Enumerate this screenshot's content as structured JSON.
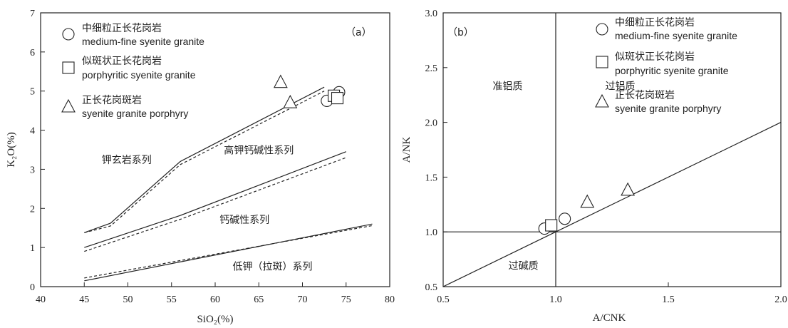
{
  "chart_data": [
    {
      "type": "scatter",
      "panel_label": "（a）",
      "xlabel": "SiO₂(%)",
      "ylabel": "K₂O(%)",
      "xlim": [
        40,
        80
      ],
      "ylim": [
        0,
        7
      ],
      "xticks": [
        40,
        45,
        50,
        55,
        60,
        65,
        70,
        75,
        80
      ],
      "yticks": [
        0,
        1,
        2,
        3,
        4,
        5,
        6,
        7
      ],
      "legend": [
        {
          "marker": "circle",
          "cn": "中细粒正长花岗岩",
          "en": "medium-fine syenite granite"
        },
        {
          "marker": "square",
          "cn": "似斑状正长花岗岩",
          "en": "porphyritic  syenite granite"
        },
        {
          "marker": "triangle",
          "cn": "正长花岗斑岩",
          "en": "syenite granite porphyry"
        }
      ],
      "series": [
        {
          "marker": "circle",
          "points": [
            [
              72.8,
              4.75
            ],
            [
              74.2,
              4.97
            ]
          ]
        },
        {
          "marker": "square",
          "points": [
            [
              73.6,
              4.88
            ],
            [
              74.0,
              4.82
            ]
          ]
        },
        {
          "marker": "triangle",
          "points": [
            [
              67.5,
              5.22
            ],
            [
              68.6,
              4.7
            ]
          ]
        }
      ],
      "lines": [
        {
          "style": "solid",
          "points": [
            [
              45,
              1.38
            ],
            [
              48,
              1.62
            ],
            [
              56,
              3.2
            ],
            [
              72.5,
              5.1
            ]
          ]
        },
        {
          "style": "dashed",
          "points": [
            [
              45,
              1.38
            ],
            [
              48,
              1.55
            ],
            [
              56,
              3.12
            ],
            [
              72.5,
              5.0
            ]
          ]
        },
        {
          "style": "solid",
          "points": [
            [
              45,
              1.0
            ],
            [
              56,
              1.82
            ],
            [
              75,
              3.45
            ]
          ]
        },
        {
          "style": "dashed",
          "points": [
            [
              45,
              0.9
            ],
            [
              56,
              1.72
            ],
            [
              75,
              3.3
            ]
          ]
        },
        {
          "style": "solid",
          "points": [
            [
              45,
              0.15
            ],
            [
              78,
              1.6
            ]
          ]
        },
        {
          "style": "dashed",
          "points": [
            [
              45,
              0.22
            ],
            [
              78,
              1.56
            ]
          ]
        }
      ],
      "region_labels": [
        {
          "text": "钾玄岩系列",
          "x": 47.0,
          "y": 3.15
        },
        {
          "text": "高钾钙碱性系列",
          "x": 61.0,
          "y": 3.4
        },
        {
          "text": "钙碱性系列",
          "x": 60.5,
          "y": 1.62
        },
        {
          "text": "低钾（拉斑）系列",
          "x": 62.0,
          "y": 0.43
        }
      ]
    },
    {
      "type": "scatter",
      "panel_label": "（b）",
      "xlabel": "A/CNK",
      "ylabel": "A/NK",
      "xlim": [
        0.5,
        2.0
      ],
      "ylim": [
        0.5,
        3.0
      ],
      "xticks": [
        "0.5",
        "1.0",
        "1.5",
        "2.0"
      ],
      "yticks": [
        "0.5",
        "1.0",
        "1.5",
        "2.0",
        "2.5",
        "3.0"
      ],
      "legend": [
        {
          "marker": "circle",
          "cn": "中细粒正长花岗岩",
          "en": "medium-fine syenite granite"
        },
        {
          "marker": "square",
          "cn": "似斑状正长花岗岩",
          "en": "porphyritic  syenite granite"
        },
        {
          "marker": "triangle",
          "cn": "正长花岗斑岩",
          "en": "syenite granite porphyry"
        }
      ],
      "series": [
        {
          "marker": "circle",
          "points": [
            [
              0.95,
              1.03
            ],
            [
              1.04,
              1.12
            ]
          ]
        },
        {
          "marker": "square",
          "points": [
            [
              0.98,
              1.06
            ]
          ]
        },
        {
          "marker": "triangle",
          "points": [
            [
              1.14,
              1.27
            ],
            [
              1.32,
              1.38
            ]
          ]
        }
      ],
      "lines": [
        {
          "style": "solid",
          "points": [
            [
              1.0,
              0.5
            ],
            [
              1.0,
              3.0
            ]
          ]
        },
        {
          "style": "solid",
          "points": [
            [
              0.5,
              1.0
            ],
            [
              2.0,
              1.0
            ]
          ]
        },
        {
          "style": "solid",
          "points": [
            [
              0.5,
              0.5
            ],
            [
              2.0,
              2.0
            ]
          ]
        }
      ],
      "region_labels": [
        {
          "text": "准铝质",
          "x": 0.72,
          "y": 2.3
        },
        {
          "text": "过铝质",
          "x": 1.22,
          "y": 2.3
        },
        {
          "text": "过碱质",
          "x": 0.79,
          "y": 0.66
        }
      ]
    }
  ]
}
